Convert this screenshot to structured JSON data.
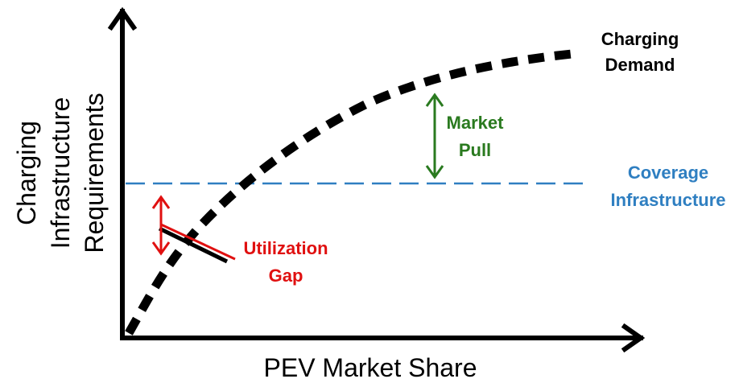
{
  "x_axis_label": "PEV Market Share",
  "y_axis_label": [
    "Charging",
    "Infrastructure",
    "Requirements"
  ],
  "curves": {
    "demand": {
      "label": [
        "Charging",
        "Demand"
      ]
    },
    "coverage": {
      "label": [
        "Coverage",
        "Infrastructure"
      ]
    }
  },
  "annotations": {
    "market_pull": [
      "Market",
      "Pull"
    ],
    "utilization_gap": [
      "Utilization",
      "Gap"
    ]
  }
}
